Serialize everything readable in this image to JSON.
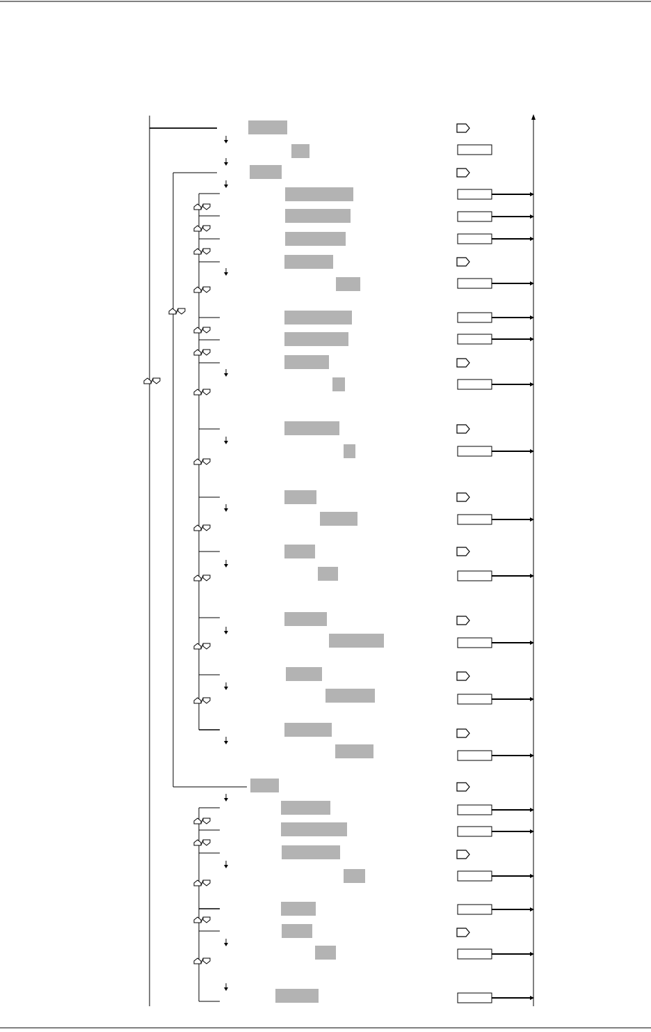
{
  "colors": {
    "line": "#000000",
    "label_box": "#b3b3b3",
    "background": "#ffffff"
  },
  "icons": {
    "enter_key": "enter-key-icon",
    "up_down_keys": "up-down-keys-icon",
    "down_arrow": "down-arrow-icon"
  },
  "menu_rows": [
    {
      "level": 0,
      "enter_key": true,
      "value_box": false
    },
    {
      "level": 0,
      "enter_key": false,
      "value_box": true
    },
    {
      "level": 1,
      "enter_key": true,
      "value_box": false
    },
    {
      "level": 2,
      "enter_key": false,
      "value_box": true
    },
    {
      "level": 2,
      "enter_key": false,
      "value_box": true
    },
    {
      "level": 2,
      "enter_key": false,
      "value_box": true
    },
    {
      "level": 2,
      "enter_key": true,
      "value_box": false
    },
    {
      "level": 2,
      "enter_key": false,
      "value_box": true
    },
    {
      "level": 2,
      "enter_key": false,
      "value_box": true
    },
    {
      "level": 2,
      "enter_key": false,
      "value_box": true
    },
    {
      "level": 2,
      "enter_key": true,
      "value_box": false
    },
    {
      "level": 2,
      "enter_key": false,
      "value_box": true
    },
    {
      "level": 2,
      "enter_key": true,
      "value_box": false
    },
    {
      "level": 2,
      "enter_key": false,
      "value_box": true
    },
    {
      "level": 2,
      "enter_key": true,
      "value_box": false
    },
    {
      "level": 2,
      "enter_key": false,
      "value_box": true
    },
    {
      "level": 2,
      "enter_key": true,
      "value_box": false
    },
    {
      "level": 2,
      "enter_key": false,
      "value_box": true
    },
    {
      "level": 2,
      "enter_key": true,
      "value_box": false
    },
    {
      "level": 2,
      "enter_key": false,
      "value_box": true
    },
    {
      "level": 2,
      "enter_key": true,
      "value_box": false
    },
    {
      "level": 2,
      "enter_key": false,
      "value_box": true
    },
    {
      "level": 2,
      "enter_key": true,
      "value_box": false
    },
    {
      "level": 2,
      "enter_key": false,
      "value_box": true
    },
    {
      "level": 1,
      "enter_key": true,
      "value_box": false
    },
    {
      "level": 2,
      "enter_key": false,
      "value_box": true
    },
    {
      "level": 2,
      "enter_key": false,
      "value_box": true
    },
    {
      "level": 2,
      "enter_key": true,
      "value_box": false
    },
    {
      "level": 2,
      "enter_key": false,
      "value_box": true
    },
    {
      "level": 2,
      "enter_key": false,
      "value_box": true
    },
    {
      "level": 2,
      "enter_key": true,
      "value_box": false
    },
    {
      "level": 2,
      "enter_key": false,
      "value_box": true
    },
    {
      "level": 2,
      "enter_key": false,
      "value_box": true
    }
  ]
}
